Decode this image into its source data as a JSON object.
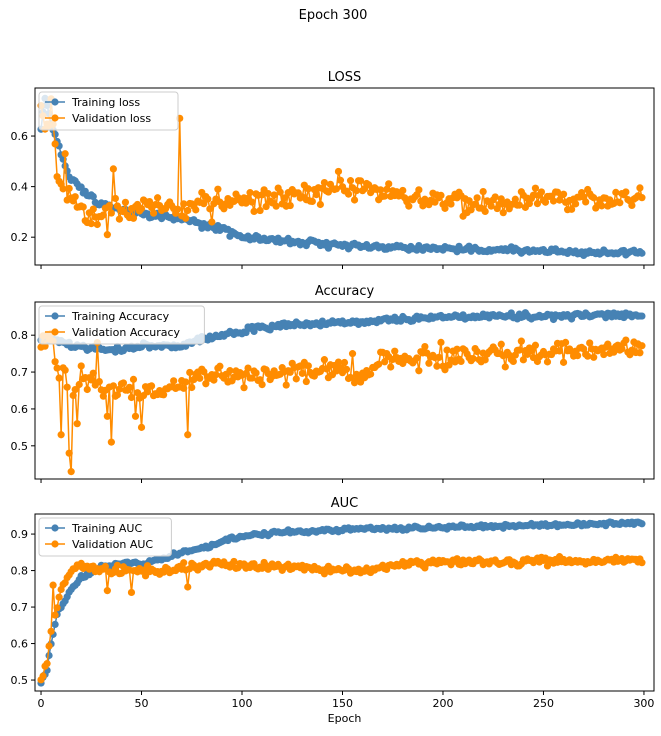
{
  "figure": {
    "suptitle": "Epoch 300"
  },
  "colors": {
    "training": "#4682b4",
    "validation": "#ff8c00"
  },
  "chart_data": [
    {
      "type": "line",
      "title": "LOSS",
      "xlabel": "",
      "ylabel": "",
      "xlim": [
        -3,
        305
      ],
      "ylim": [
        0.09,
        0.79
      ],
      "yticks": [
        0.2,
        0.4,
        0.6
      ],
      "ytick_labels": [
        "0.2",
        "0.4",
        "0.6"
      ],
      "xticks": [
        0,
        50,
        100,
        150,
        200,
        250,
        300
      ],
      "xtick_labels": [
        "",
        "",
        "",
        "",
        "",
        "",
        ""
      ],
      "legend": "top-left",
      "series": [
        {
          "name": "Training loss",
          "color": "#4682b4",
          "keypoints": [
            [
              0,
              0.63
            ],
            [
              2,
              0.75
            ],
            [
              5,
              0.65
            ],
            [
              8,
              0.58
            ],
            [
              10,
              0.53
            ],
            [
              15,
              0.43
            ],
            [
              20,
              0.39
            ],
            [
              25,
              0.36
            ],
            [
              30,
              0.33
            ],
            [
              40,
              0.31
            ],
            [
              50,
              0.29
            ],
            [
              60,
              0.28
            ],
            [
              70,
              0.27
            ],
            [
              75,
              0.26
            ],
            [
              80,
              0.25
            ],
            [
              90,
              0.23
            ],
            [
              100,
              0.2
            ],
            [
              110,
              0.19
            ],
            [
              120,
              0.185
            ],
            [
              130,
              0.18
            ],
            [
              140,
              0.175
            ],
            [
              150,
              0.17
            ],
            [
              160,
              0.165
            ],
            [
              170,
              0.16
            ],
            [
              180,
              0.16
            ],
            [
              200,
              0.155
            ],
            [
              220,
              0.15
            ],
            [
              250,
              0.145
            ],
            [
              280,
              0.14
            ],
            [
              299,
              0.135
            ]
          ],
          "noise": 0.012
        },
        {
          "name": "Validation loss",
          "color": "#ff8c00",
          "keypoints": [
            [
              0,
              0.7
            ],
            [
              3,
              0.62
            ],
            [
              5,
              0.73
            ],
            [
              8,
              0.45
            ],
            [
              10,
              0.42
            ],
            [
              12,
              0.35
            ],
            [
              15,
              0.37
            ],
            [
              20,
              0.31
            ],
            [
              25,
              0.28
            ],
            [
              30,
              0.28
            ],
            [
              35,
              0.32
            ],
            [
              40,
              0.3
            ],
            [
              50,
              0.32
            ],
            [
              60,
              0.33
            ],
            [
              65,
              0.33
            ],
            [
              70,
              0.3
            ],
            [
              75,
              0.32
            ],
            [
              80,
              0.35
            ],
            [
              90,
              0.35
            ],
            [
              100,
              0.35
            ],
            [
              120,
              0.35
            ],
            [
              140,
              0.38
            ],
            [
              150,
              0.4
            ],
            [
              160,
              0.39
            ],
            [
              170,
              0.38
            ],
            [
              180,
              0.36
            ],
            [
              200,
              0.34
            ],
            [
              220,
              0.34
            ],
            [
              250,
              0.35
            ],
            [
              280,
              0.34
            ],
            [
              299,
              0.36
            ]
          ],
          "noise": 0.045,
          "spikes": [
            [
              12,
              0.53
            ],
            [
              33,
              0.21
            ],
            [
              36,
              0.47
            ],
            [
              69,
              0.67
            ],
            [
              85,
              0.26
            ],
            [
              148,
              0.46
            ]
          ]
        }
      ]
    },
    {
      "type": "line",
      "title": "Accuracy",
      "xlabel": "",
      "ylabel": "",
      "xlim": [
        -3,
        305
      ],
      "ylim": [
        0.41,
        0.89
      ],
      "yticks": [
        0.5,
        0.6,
        0.7,
        0.8
      ],
      "ytick_labels": [
        "0.5",
        "0.6",
        "0.7",
        "0.8"
      ],
      "xticks": [
        0,
        50,
        100,
        150,
        200,
        250,
        300
      ],
      "xtick_labels": [
        "",
        "",
        "",
        "",
        "",
        "",
        ""
      ],
      "legend": "top-left",
      "series": [
        {
          "name": "Training Accuracy",
          "color": "#4682b4",
          "keypoints": [
            [
              0,
              0.79
            ],
            [
              5,
              0.79
            ],
            [
              10,
              0.78
            ],
            [
              15,
              0.77
            ],
            [
              20,
              0.77
            ],
            [
              30,
              0.76
            ],
            [
              40,
              0.76
            ],
            [
              50,
              0.77
            ],
            [
              60,
              0.77
            ],
            [
              70,
              0.77
            ],
            [
              75,
              0.78
            ],
            [
              80,
              0.79
            ],
            [
              90,
              0.8
            ],
            [
              100,
              0.81
            ],
            [
              110,
              0.82
            ],
            [
              120,
              0.825
            ],
            [
              130,
              0.83
            ],
            [
              150,
              0.835
            ],
            [
              170,
              0.84
            ],
            [
              190,
              0.845
            ],
            [
              210,
              0.85
            ],
            [
              250,
              0.853
            ],
            [
              280,
              0.855
            ],
            [
              299,
              0.856
            ]
          ],
          "noise": 0.008
        },
        {
          "name": "Validation Accuracy",
          "color": "#ff8c00",
          "keypoints": [
            [
              0,
              0.79
            ],
            [
              5,
              0.78
            ],
            [
              10,
              0.7
            ],
            [
              15,
              0.66
            ],
            [
              20,
              0.7
            ],
            [
              30,
              0.66
            ],
            [
              40,
              0.66
            ],
            [
              50,
              0.64
            ],
            [
              60,
              0.65
            ],
            [
              70,
              0.66
            ],
            [
              80,
              0.69
            ],
            [
              90,
              0.69
            ],
            [
              100,
              0.69
            ],
            [
              120,
              0.7
            ],
            [
              140,
              0.71
            ],
            [
              150,
              0.7
            ],
            [
              160,
              0.7
            ],
            [
              170,
              0.73
            ],
            [
              180,
              0.735
            ],
            [
              200,
              0.74
            ],
            [
              220,
              0.745
            ],
            [
              240,
              0.75
            ],
            [
              260,
              0.757
            ],
            [
              280,
              0.76
            ],
            [
              299,
              0.763
            ]
          ],
          "noise": 0.03,
          "spikes": [
            [
              10,
              0.53
            ],
            [
              15,
              0.43
            ],
            [
              14,
              0.48
            ],
            [
              18,
              0.56
            ],
            [
              35,
              0.51
            ],
            [
              50,
              0.55
            ],
            [
              73,
              0.53
            ],
            [
              28,
              0.78
            ],
            [
              33,
              0.58
            ],
            [
              47,
              0.58
            ],
            [
              155,
              0.75
            ]
          ]
        }
      ]
    },
    {
      "type": "line",
      "title": "AUC",
      "xlabel": "Epoch",
      "ylabel": "",
      "xlim": [
        -3,
        305
      ],
      "ylim": [
        0.47,
        0.955
      ],
      "yticks": [
        0.5,
        0.6,
        0.7,
        0.8,
        0.9
      ],
      "ytick_labels": [
        "0.5",
        "0.6",
        "0.7",
        "0.8",
        "0.9"
      ],
      "xticks": [
        0,
        50,
        100,
        150,
        200,
        250,
        300
      ],
      "xtick_labels": [
        "0",
        "50",
        "100",
        "150",
        "200",
        "250",
        "300"
      ],
      "legend": "top-left",
      "series": [
        {
          "name": "Training AUC",
          "color": "#4682b4",
          "keypoints": [
            [
              0,
              0.49
            ],
            [
              3,
              0.53
            ],
            [
              5,
              0.6
            ],
            [
              8,
              0.68
            ],
            [
              12,
              0.72
            ],
            [
              15,
              0.75
            ],
            [
              20,
              0.78
            ],
            [
              30,
              0.81
            ],
            [
              40,
              0.82
            ],
            [
              50,
              0.82
            ],
            [
              60,
              0.83
            ],
            [
              65,
              0.84
            ],
            [
              70,
              0.85
            ],
            [
              80,
              0.86
            ],
            [
              90,
              0.88
            ],
            [
              100,
              0.895
            ],
            [
              110,
              0.9
            ],
            [
              120,
              0.905
            ],
            [
              140,
              0.91
            ],
            [
              160,
              0.915
            ],
            [
              180,
              0.915
            ],
            [
              200,
              0.92
            ],
            [
              230,
              0.922
            ],
            [
              260,
              0.926
            ],
            [
              280,
              0.928
            ],
            [
              299,
              0.929
            ]
          ],
          "noise": 0.005
        },
        {
          "name": "Validation AUC",
          "color": "#ff8c00",
          "keypoints": [
            [
              0,
              0.5
            ],
            [
              3,
              0.55
            ],
            [
              5,
              0.63
            ],
            [
              8,
              0.7
            ],
            [
              10,
              0.75
            ],
            [
              15,
              0.8
            ],
            [
              20,
              0.81
            ],
            [
              30,
              0.8
            ],
            [
              40,
              0.8
            ],
            [
              50,
              0.8
            ],
            [
              60,
              0.8
            ],
            [
              70,
              0.81
            ],
            [
              80,
              0.815
            ],
            [
              90,
              0.82
            ],
            [
              100,
              0.81
            ],
            [
              120,
              0.81
            ],
            [
              140,
              0.805
            ],
            [
              150,
              0.8
            ],
            [
              160,
              0.8
            ],
            [
              170,
              0.815
            ],
            [
              200,
              0.82
            ],
            [
              250,
              0.825
            ],
            [
              299,
              0.826
            ]
          ],
          "noise": 0.012,
          "spikes": [
            [
              6,
              0.76
            ],
            [
              33,
              0.745
            ],
            [
              45,
              0.74
            ],
            [
              73,
              0.755
            ]
          ]
        }
      ]
    }
  ]
}
